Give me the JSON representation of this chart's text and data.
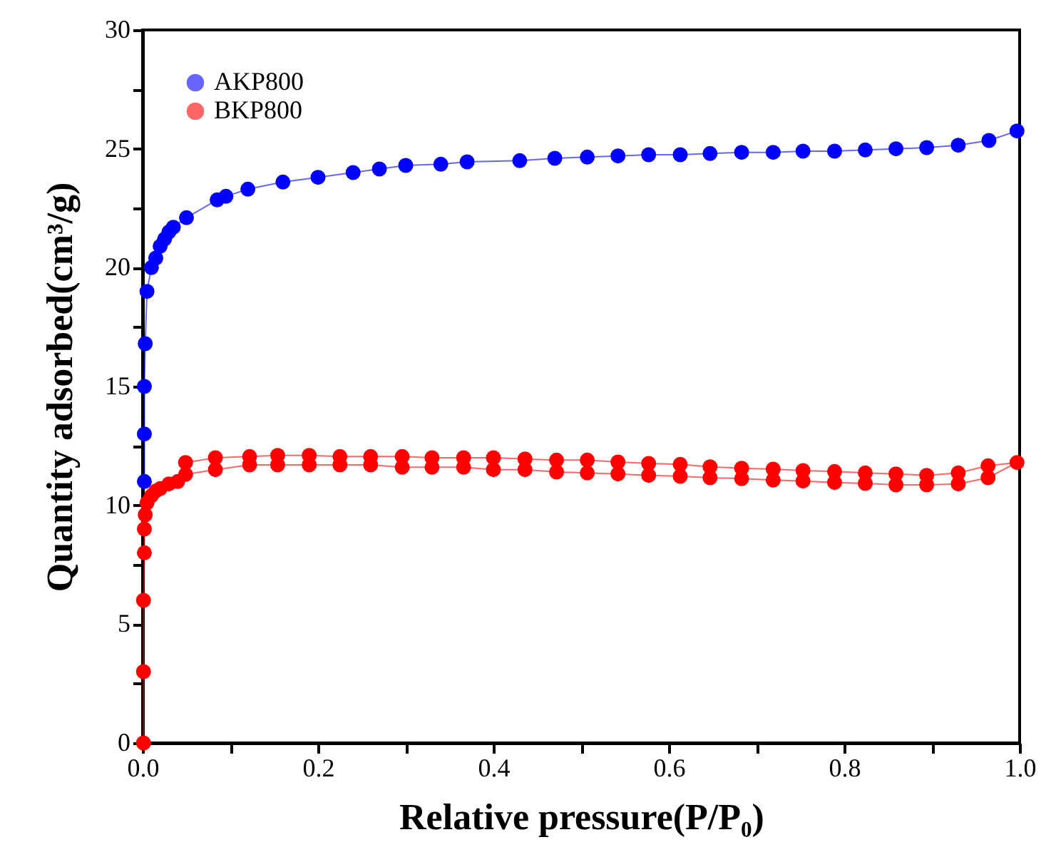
{
  "chart_data": {
    "type": "line",
    "xlabel": "Relative pressure(P/P₀)",
    "ylabel": "Quantity adsorbed(cm³/g)",
    "xlim": [
      0,
      1
    ],
    "ylim": [
      0,
      30
    ],
    "xticks": [
      {
        "value": 0,
        "label": "0.0"
      },
      {
        "value": 0.1,
        "label": null
      },
      {
        "value": 0.2,
        "label": "0.2"
      },
      {
        "value": 0.3,
        "label": null
      },
      {
        "value": 0.4,
        "label": "0.4"
      },
      {
        "value": 0.5,
        "label": null
      },
      {
        "value": 0.6,
        "label": "0.6"
      },
      {
        "value": 0.7,
        "label": null
      },
      {
        "value": 0.8,
        "label": "0.8"
      },
      {
        "value": 0.9,
        "label": null
      },
      {
        "value": 1,
        "label": "1.0"
      }
    ],
    "yticks": [
      0,
      {
        "value": 2.5,
        "label": null
      },
      5,
      {
        "value": 7.5,
        "label": null
      },
      10,
      {
        "value": 12.5,
        "label": null
      },
      15,
      {
        "value": 17.5,
        "label": null
      },
      20,
      {
        "value": 22.5,
        "label": null
      },
      25,
      {
        "value": 27.5,
        "label": null
      },
      30
    ],
    "grid": false,
    "legend": "top left",
    "marker": "circle",
    "line_style": "solid",
    "series": [
      {
        "name": "AKP800",
        "color": "#0000ff",
        "x": [
          0.002,
          0.002,
          0.002,
          0.003,
          0.005,
          0.01,
          0.015,
          0.02,
          0.025,
          0.03,
          0.035,
          0.05,
          0.085,
          0.095,
          0.12,
          0.16,
          0.2,
          0.24,
          0.27,
          0.3,
          0.34,
          0.37,
          0.43,
          0.47,
          0.507,
          0.542,
          0.577,
          0.613,
          0.647,
          0.683,
          0.719,
          0.753,
          0.789,
          0.824,
          0.859,
          0.894,
          0.93,
          0.965,
          0.997
        ],
        "values": [
          11,
          13,
          15,
          16.8,
          19,
          20,
          20.4,
          20.9,
          21.2,
          21.5,
          21.7,
          22.1,
          22.85,
          23.0,
          23.3,
          23.6,
          23.8,
          24.0,
          24.15,
          24.3,
          24.35,
          24.45,
          24.5,
          24.6,
          24.65,
          24.7,
          24.75,
          24.75,
          24.8,
          24.85,
          24.85,
          24.9,
          24.9,
          24.95,
          25.0,
          25.05,
          25.15,
          25.35,
          25.75
        ]
      },
      {
        "name": "BKP800",
        "color": "#ff0000",
        "x": [
          0.001,
          0.001,
          0.001,
          0.002,
          0.002,
          0.003,
          0.005,
          0.01,
          0.015,
          0.02,
          0.03,
          0.04,
          0.049,
          0.083,
          0.122,
          0.154,
          0.19,
          0.225,
          0.26,
          0.296,
          0.33,
          0.366,
          0.4,
          0.436,
          0.472,
          0.507,
          0.542,
          0.577,
          0.613,
          0.647,
          0.683,
          0.719,
          0.753,
          0.789,
          0.824,
          0.859,
          0.894,
          0.93,
          0.964,
          0.997,
          0.964,
          0.93,
          0.894,
          0.859,
          0.824,
          0.789,
          0.753,
          0.719,
          0.683,
          0.647,
          0.613,
          0.577,
          0.542,
          0.507,
          0.472,
          0.436,
          0.4,
          0.366,
          0.33,
          0.296,
          0.26,
          0.225,
          0.19,
          0.154,
          0.122,
          0.083,
          0.049
        ],
        "values": [
          0,
          3,
          6,
          8,
          9,
          9.6,
          10.1,
          10.4,
          10.6,
          10.7,
          10.9,
          11.0,
          11.3,
          11.5,
          11.7,
          11.7,
          11.7,
          11.7,
          11.7,
          11.6,
          11.6,
          11.6,
          11.5,
          11.5,
          11.4,
          11.36,
          11.32,
          11.26,
          11.22,
          11.16,
          11.12,
          11.06,
          11.02,
          10.96,
          10.92,
          10.86,
          10.86,
          10.9,
          11.16,
          11.8,
          11.66,
          11.36,
          11.26,
          11.32,
          11.36,
          11.42,
          11.46,
          11.52,
          11.56,
          11.62,
          11.72,
          11.76,
          11.82,
          11.9,
          11.9,
          11.95,
          12.0,
          12.0,
          12.0,
          12.05,
          12.05,
          12.05,
          12.1,
          12.1,
          12.05,
          12.0,
          11.8
        ]
      }
    ]
  }
}
